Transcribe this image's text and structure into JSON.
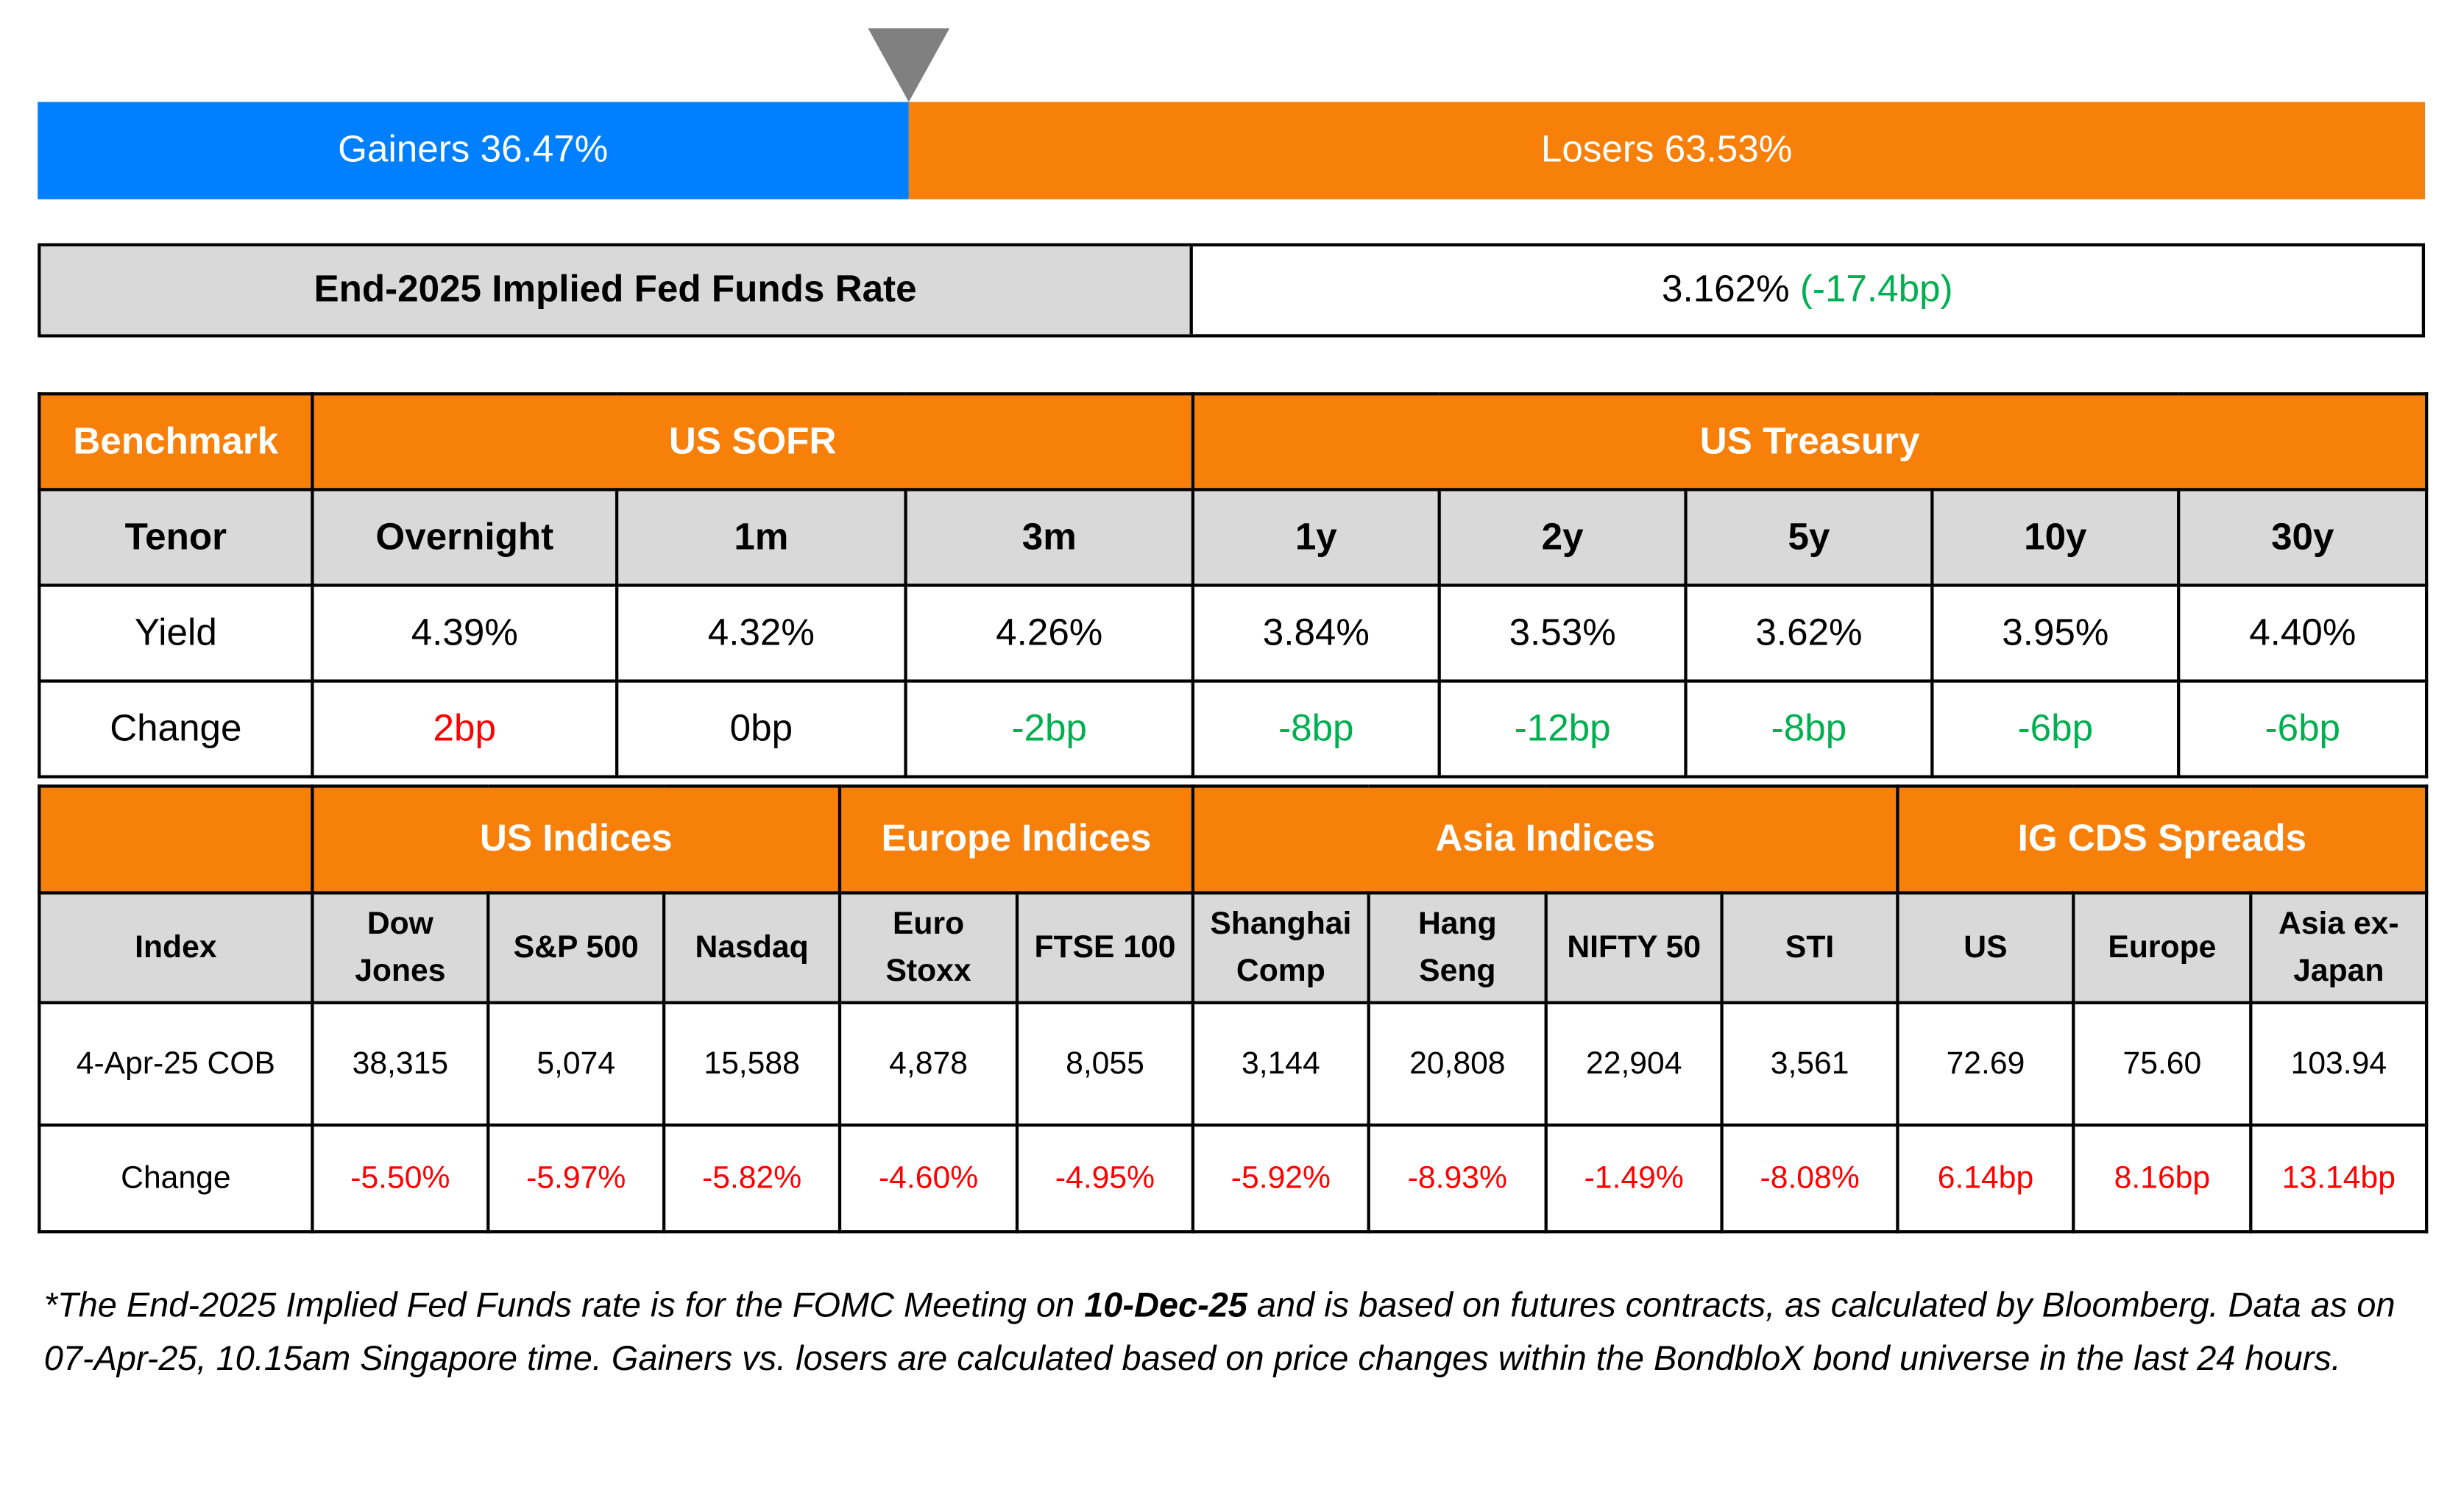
{
  "breadth": {
    "gainers_label": "Gainers 36.47%",
    "losers_label": "Losers 63.53%",
    "gainers_pct": 36.47,
    "losers_pct": 63.53,
    "gainers_color": "#0080FF",
    "losers_color": "#F7800A",
    "marker_icon": "triangle-down-icon"
  },
  "fed": {
    "label": "End-2025 Implied Fed Funds Rate",
    "value": "3.162%",
    "change": "(-17.4bp)"
  },
  "rates": {
    "benchmark_label": "Benchmark",
    "sofr_label": "US SOFR",
    "treasury_label": "US Treasury",
    "tenor_label": "Tenor",
    "yield_label": "Yield",
    "change_label": "Change",
    "tenors": [
      "Overnight",
      "1m",
      "3m",
      "1y",
      "2y",
      "5y",
      "10y",
      "30y"
    ],
    "yields": [
      "4.39%",
      "4.32%",
      "4.26%",
      "3.84%",
      "3.53%",
      "3.62%",
      "3.95%",
      "4.40%"
    ],
    "changes": [
      "2bp",
      "0bp",
      "-2bp",
      "-8bp",
      "-12bp",
      "-8bp",
      "-6bp",
      "-6bp"
    ],
    "change_colors": [
      "#FF0000",
      "#000000",
      "#00B050",
      "#00B050",
      "#00B050",
      "#00B050",
      "#00B050",
      "#00B050"
    ]
  },
  "indices": {
    "groups": [
      "US Indices",
      "Europe Indices",
      "Asia Indices",
      "IG CDS Spreads"
    ],
    "index_label": "Index",
    "date_label": "4-Apr-25 COB",
    "change_label": "Change",
    "names": [
      [
        "Dow",
        "Jones"
      ],
      [
        "S&P 500"
      ],
      [
        "Nasdaq"
      ],
      [
        "Euro",
        "Stoxx"
      ],
      [
        "FTSE 100"
      ],
      [
        "Shanghai",
        "Comp"
      ],
      [
        "Hang",
        "Seng"
      ],
      [
        "NIFTY 50"
      ],
      [
        "STI"
      ],
      [
        "US"
      ],
      [
        "Europe"
      ],
      [
        "Asia ex-",
        "Japan"
      ]
    ],
    "values": [
      "38,315",
      "5,074",
      "15,588",
      "4,878",
      "8,055",
      "3,144",
      "20,808",
      "22,904",
      "3,561",
      "72.69",
      "75.60",
      "103.94"
    ],
    "changes": [
      "-5.50%",
      "-5.97%",
      "-5.82%",
      "-4.60%",
      "-4.95%",
      "-5.92%",
      "-8.93%",
      "-1.49%",
      "-8.08%",
      "6.14bp",
      "8.16bp",
      "13.14bp"
    ]
  },
  "footnote": {
    "part1": "*The End-2025 Implied Fed Funds rate is for the FOMC Meeting on ",
    "bold": "10-Dec-25",
    "part2": " and is based on futures contracts, as calculated by Bloomberg. Data as on 07-Apr-25, 10.15am Singapore time. Gainers vs. losers are calculated based on price changes within the BondbloX bond universe in the last 24 hours."
  }
}
